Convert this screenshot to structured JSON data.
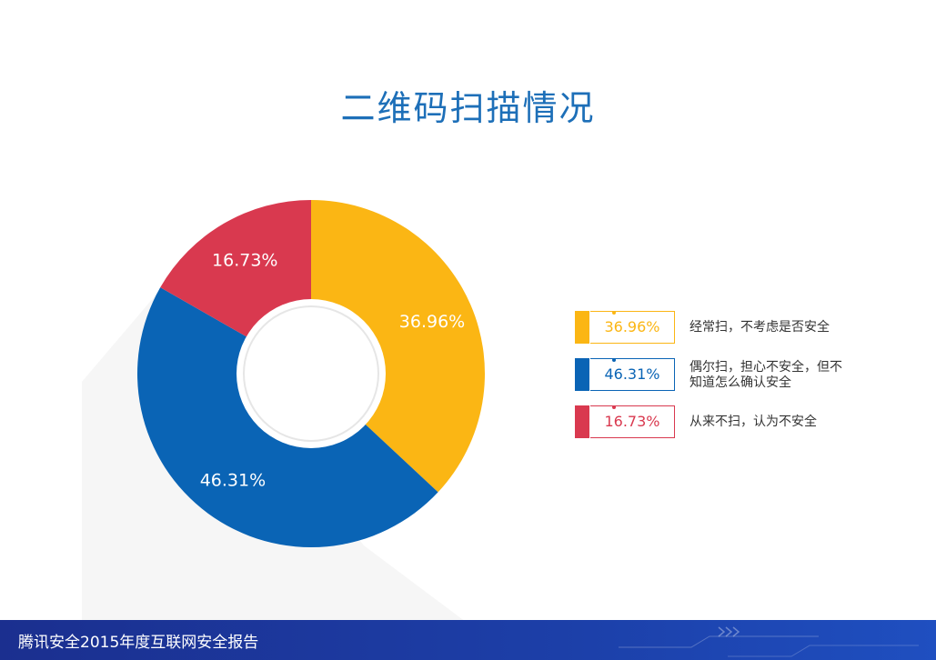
{
  "title": "二维码扫描情况",
  "chart_data": {
    "type": "pie",
    "title": "二维码扫描情况",
    "categories": [
      "经常扫，不考虑是否安全",
      "偶尔扫，担心不安全，但不知道怎么确认安全",
      "从来不扫，认为不安全"
    ],
    "values": [
      36.96,
      46.31,
      16.73
    ],
    "labels": [
      "36.96%",
      "46.31%",
      "16.73%"
    ],
    "colors": [
      "#fbb614",
      "#0a64b5",
      "#d9394f"
    ],
    "donut": true,
    "legend_position": "right"
  },
  "legend": [
    {
      "percent": "36.96%",
      "text": "经常扫，不考虑是否安全",
      "color": "#fbb614"
    },
    {
      "percent": "46.31%",
      "text": "偶尔扫，担心不安全，但不知道怎么确认安全",
      "color": "#0a64b5"
    },
    {
      "percent": "16.73%",
      "text": "从来不扫，认为不安全",
      "color": "#d9394f"
    }
  ],
  "footer": {
    "text": "腾讯安全2015年度互联网安全报告"
  }
}
